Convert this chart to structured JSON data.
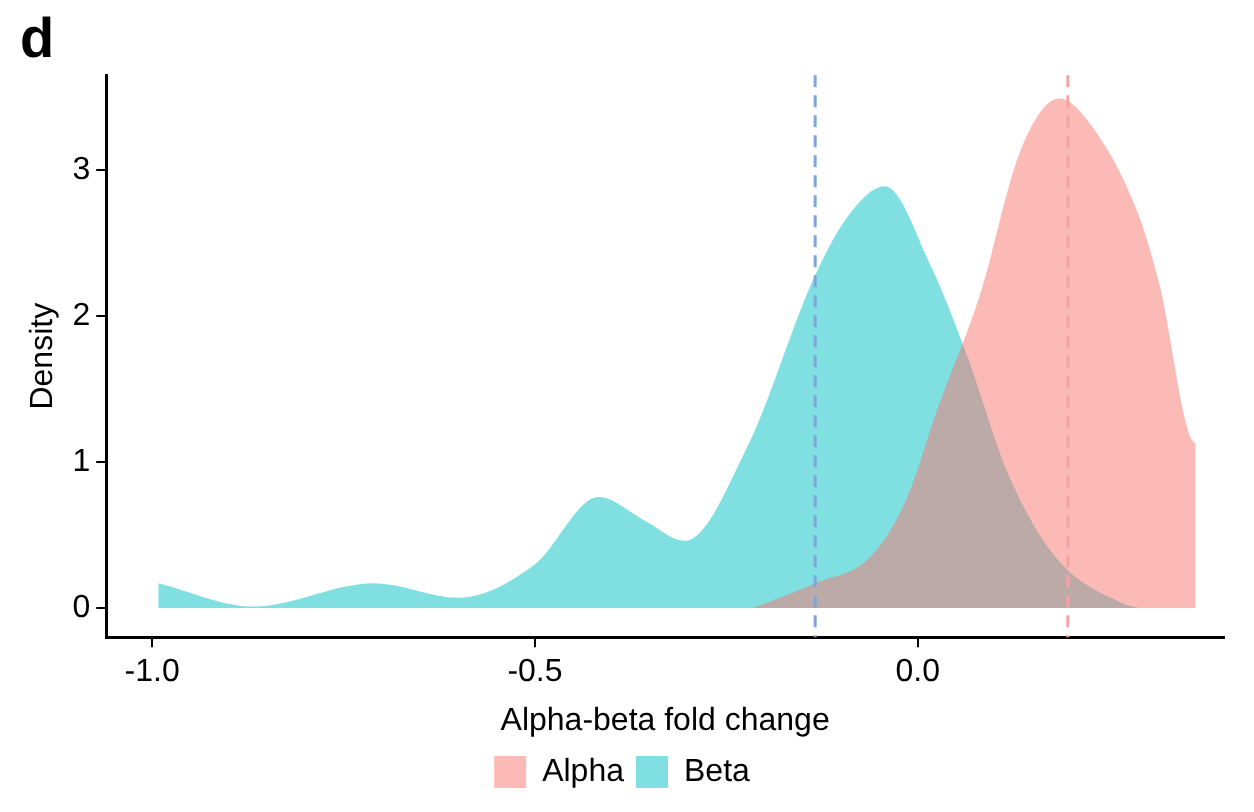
{
  "chart_data": {
    "type": "area",
    "title": "d",
    "xlabel": "Alpha-beta fold change",
    "ylabel": "Density",
    "xlim": [
      -1.06,
      0.4
    ],
    "ylim": [
      -0.2,
      3.65
    ],
    "xticks": [
      {
        "value": -1,
        "label": "-1.0"
      },
      -0.5,
      {
        "value": 0,
        "label": "0.0"
      }
    ],
    "yticks": [
      0,
      1,
      2,
      3
    ],
    "series": [
      {
        "name": "Alpha",
        "color": "#f8766d",
        "x": [
          -0.215,
          -0.134,
          -0.062,
          -0.016,
          0.027,
          0.081,
          0.134,
          0.185,
          0.226,
          0.288,
          0.315,
          0.363,
          0.363
        ],
        "values": [
          0,
          0.17,
          0.35,
          0.73,
          1.38,
          2.14,
          3.13,
          3.49,
          3.31,
          2.7,
          2.23,
          1.13,
          0
        ]
      },
      {
        "name": "Beta",
        "color": "#00bfc4",
        "x": [
          -0.992,
          -0.868,
          -0.71,
          -0.6,
          -0.5,
          -0.417,
          -0.357,
          -0.304,
          -0.223,
          -0.134,
          -0.089,
          -0.043,
          0.019,
          0.065,
          0.118,
          0.18,
          0.269,
          0.29
        ],
        "values": [
          0.17,
          0.01,
          0.17,
          0.07,
          0.3,
          0.76,
          0.6,
          0.46,
          1.1,
          2.28,
          2.7,
          2.89,
          2.32,
          1.72,
          0.92,
          0.35,
          0.03,
          0
        ]
      }
    ],
    "ref_lines": [
      {
        "axis": "x",
        "value": -0.134,
        "color": "#7fa6d8",
        "line_style": "dashed"
      },
      {
        "axis": "x",
        "value": 0.196,
        "color": "#f4a3a3",
        "line_style": "dashed"
      }
    ],
    "legend": "bottom",
    "grid": false
  }
}
